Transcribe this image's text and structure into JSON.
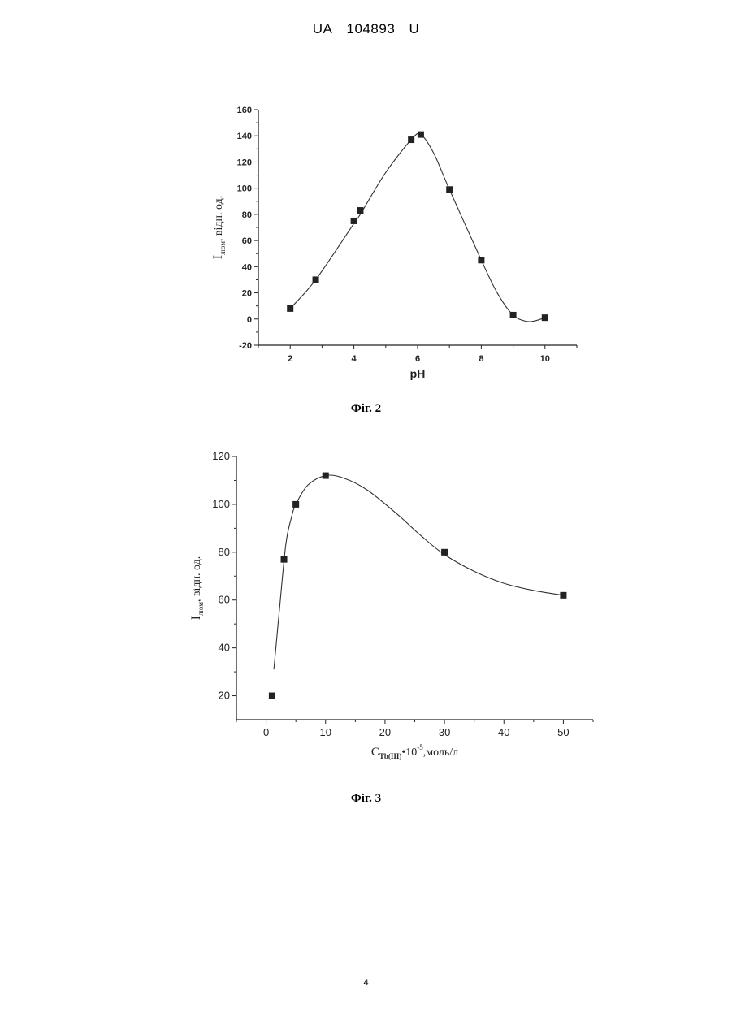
{
  "header": {
    "country": "UA",
    "number": "104893",
    "kind": "U"
  },
  "page_number": "4",
  "chart_data": [
    {
      "type": "scatter",
      "caption": "Фіг. 2",
      "xlabel": "pH",
      "ylabel": "I люм, відн. од.",
      "ylabel_main": "I",
      "ylabel_sub": "люм",
      "ylabel_rest": ", відн. од.",
      "xlim": [
        1,
        11
      ],
      "ylim": [
        -20,
        160
      ],
      "xticks": [
        2,
        4,
        6,
        8,
        10
      ],
      "yticks": [
        -20,
        0,
        20,
        40,
        60,
        80,
        100,
        120,
        140,
        160
      ],
      "points": [
        {
          "x": 2,
          "y": 8
        },
        {
          "x": 2.8,
          "y": 30
        },
        {
          "x": 4,
          "y": 75
        },
        {
          "x": 4.2,
          "y": 83
        },
        {
          "x": 5.8,
          "y": 137
        },
        {
          "x": 6.1,
          "y": 141
        },
        {
          "x": 7,
          "y": 99
        },
        {
          "x": 8,
          "y": 45
        },
        {
          "x": 9,
          "y": 3
        },
        {
          "x": 10,
          "y": 1
        }
      ],
      "curve": [
        [
          2,
          8
        ],
        [
          2.8,
          30
        ],
        [
          4,
          73
        ],
        [
          4.2,
          80
        ],
        [
          5,
          112
        ],
        [
          5.8,
          137
        ],
        [
          6.1,
          141
        ],
        [
          6.5,
          127
        ],
        [
          7,
          99
        ],
        [
          8,
          45
        ],
        [
          8.5,
          20
        ],
        [
          9,
          3
        ],
        [
          9.5,
          -2
        ],
        [
          10,
          1
        ]
      ]
    },
    {
      "type": "scatter",
      "caption": "Фіг. 3",
      "xlabel": "C Tb(III) •10-5,моль/л",
      "xlabel_main": "C",
      "xlabel_sub": "Tb(III)",
      "xlabel_mid": "•10",
      "xlabel_sup": "-5",
      "xlabel_rest": ",моль/л",
      "ylabel": "I люм, відн. од.",
      "ylabel_main": "I",
      "ylabel_sub": "люм",
      "ylabel_rest": ", відн. од.",
      "xlim": [
        -5,
        55
      ],
      "ylim": [
        10,
        120
      ],
      "xticks": [
        0,
        10,
        20,
        30,
        40,
        50
      ],
      "yticks": [
        20,
        40,
        60,
        80,
        100,
        120
      ],
      "points": [
        {
          "x": 1,
          "y": 20
        },
        {
          "x": 3,
          "y": 77
        },
        {
          "x": 5,
          "y": 100
        },
        {
          "x": 10,
          "y": 112
        },
        {
          "x": 30,
          "y": 80
        },
        {
          "x": 50,
          "y": 62
        }
      ],
      "curve": [
        [
          1.3,
          31
        ],
        [
          2.2,
          55
        ],
        [
          3.3,
          83
        ],
        [
          4.2,
          94
        ],
        [
          5,
          100
        ],
        [
          7,
          108
        ],
        [
          10,
          112
        ],
        [
          13,
          111
        ],
        [
          17,
          106
        ],
        [
          22,
          96
        ],
        [
          26,
          87
        ],
        [
          30,
          79
        ],
        [
          35,
          72
        ],
        [
          40,
          67
        ],
        [
          45,
          64
        ],
        [
          50,
          62
        ]
      ]
    }
  ]
}
